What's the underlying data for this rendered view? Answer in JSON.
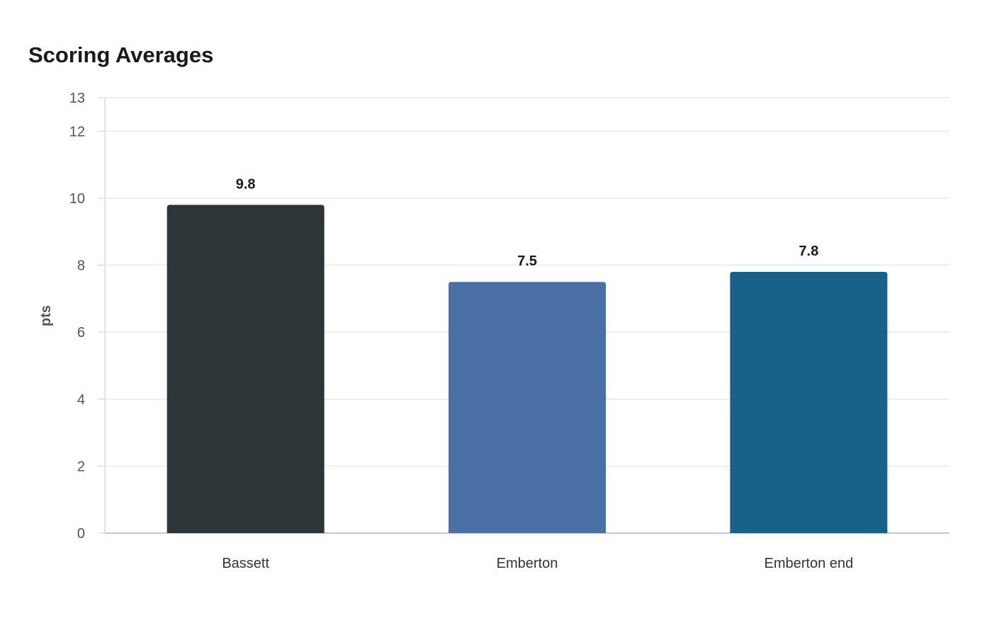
{
  "chart_data": {
    "type": "bar",
    "title": "Scoring Averages",
    "xlabel": "",
    "ylabel": "pts",
    "categories": [
      "Bassett",
      "Emberton",
      "Emberton end"
    ],
    "values": [
      9.8,
      7.5,
      7.8
    ],
    "value_labels": [
      "9.8",
      "7.5",
      "7.8"
    ],
    "colors": [
      "#2e3538",
      "#4a6fa5",
      "#186188"
    ],
    "ylim": [
      0,
      13
    ],
    "yticks": [
      0,
      2,
      4,
      6,
      8,
      10,
      12,
      13
    ],
    "grid": true,
    "legend": "none"
  }
}
